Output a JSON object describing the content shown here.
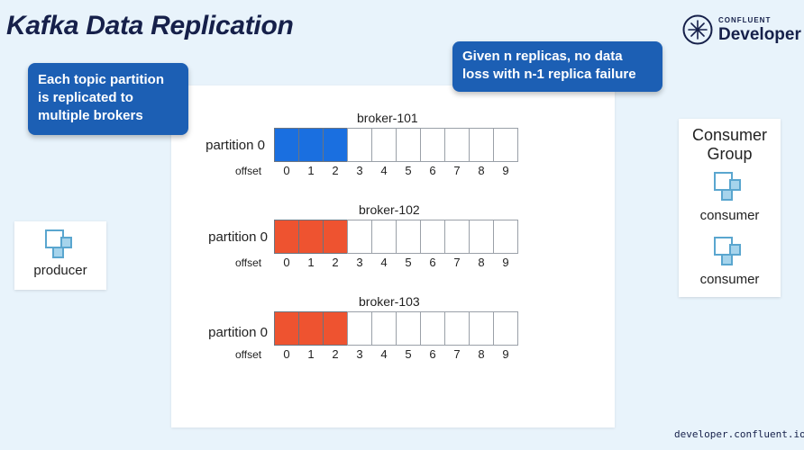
{
  "title": "Kafka Data Replication",
  "logo": {
    "brand_small": "CONFLUENT",
    "brand_big": "Developer",
    "icon": "confluent-logo-icon"
  },
  "callouts": {
    "left": [
      "Each topic partition",
      "is replicated to",
      "multiple brokers"
    ],
    "right": [
      "Given n replicas, no data",
      "loss with n-1 replica failure"
    ]
  },
  "brokers": [
    {
      "name": "broker-101",
      "partition": "partition 0",
      "offset_word": "offset",
      "filled": 3,
      "fill_color": "#1a6fe0"
    },
    {
      "name": "broker-102",
      "partition": "partition 0",
      "offset_word": "offset",
      "filled": 3,
      "fill_color": "#ee5330"
    },
    {
      "name": "broker-103",
      "partition": "partition 0",
      "offset_word": "offset",
      "filled": 3,
      "fill_color": "#ee5330"
    }
  ],
  "offsets": [
    "0",
    "1",
    "2",
    "3",
    "4",
    "5",
    "6",
    "7",
    "8",
    "9"
  ],
  "producer": {
    "label": "producer",
    "icon": "node-icon"
  },
  "consumer_group": {
    "title_line1": "Consumer",
    "title_line2": "Group",
    "consumers": [
      {
        "label": "consumer"
      },
      {
        "label": "consumer"
      }
    ]
  },
  "footer": {
    "url": "developer.confluent.io"
  },
  "colors": {
    "accent_blue": "#1c5fb4",
    "icon_teal": "#5aa6cf",
    "title_navy": "#16204a"
  }
}
